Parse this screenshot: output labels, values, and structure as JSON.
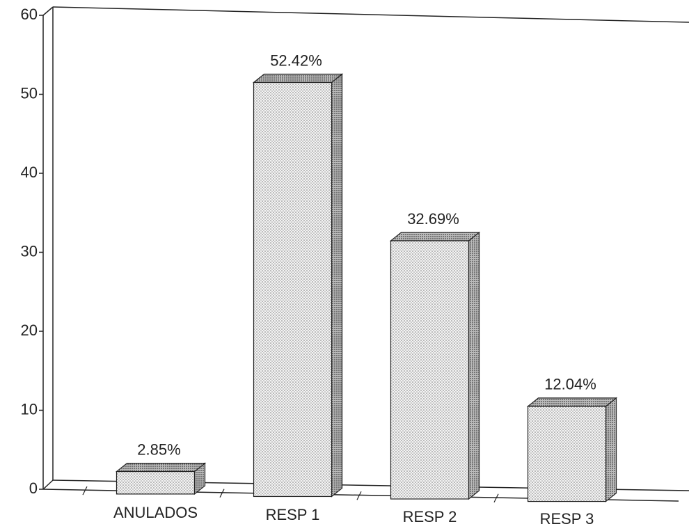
{
  "chart_data": {
    "type": "bar",
    "categories": [
      "ANULADOS",
      "RESP 1",
      "RESP 2",
      "RESP 3"
    ],
    "values": [
      2.85,
      52.42,
      32.69,
      12.04
    ],
    "value_labels": [
      "2.85%",
      "52.42%",
      "32.69%",
      "12.04%"
    ],
    "color": "#bdbdbd",
    "ylim": [
      0,
      60
    ],
    "yticks": [
      0,
      10,
      20,
      30,
      40,
      50,
      60
    ]
  }
}
